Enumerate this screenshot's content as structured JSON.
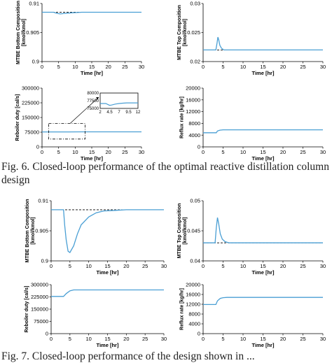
{
  "caption6": "Fig. 6. Closed-loop performance of the optimal reactive distillation column design",
  "caption7": "Fig. 7. Closed-loop performance of the design shown in ...",
  "colors": {
    "series": "#4a9fd4",
    "setpoint": "#000000"
  },
  "chart_data": [
    {
      "type": "line",
      "xlabel": "Time [hr]",
      "ylabel": "MTBE Bottom Composition [kmol/kmol]",
      "xlim": [
        0,
        30
      ],
      "ylim": [
        0.9,
        0.91
      ],
      "xticks": [
        "0",
        "5",
        "10",
        "15",
        "20",
        "25",
        "30"
      ],
      "yticks": [
        "0.9",
        "0.905",
        "0.91"
      ],
      "series": [
        {
          "x": [
            0,
            3.5,
            4.5,
            5.5,
            7,
            9,
            12,
            30
          ],
          "y": [
            0.9085,
            0.9085,
            0.9083,
            0.9082,
            0.9083,
            0.9084,
            0.9085,
            0.9085
          ]
        }
      ],
      "setpoint": 0.9085
    },
    {
      "type": "line",
      "xlabel": "Time [hr]",
      "ylabel": "MTBE Top Composition [kmol/kmol]",
      "xlim": [
        0,
        30
      ],
      "ylim": [
        0.02,
        0.03
      ],
      "xticks": [
        "0",
        "5",
        "10",
        "15",
        "20",
        "25",
        "30"
      ],
      "yticks": [
        "0.02",
        "0.025",
        "0.03"
      ],
      "series": [
        {
          "x": [
            0,
            3.2,
            3.5,
            3.7,
            3.9,
            4.2,
            4.6,
            5.2,
            6,
            30
          ],
          "y": [
            0.022,
            0.022,
            0.0232,
            0.0242,
            0.0238,
            0.0228,
            0.0223,
            0.022,
            0.022,
            0.022
          ]
        }
      ],
      "setpoint": 0.022
    },
    {
      "type": "line",
      "xlabel": "Time [hr]",
      "ylabel": "Reboiler duty [cal/s]",
      "xlim": [
        0,
        30
      ],
      "ylim": [
        0,
        300000
      ],
      "xticks": [
        "0",
        "5",
        "10",
        "15",
        "20",
        "25",
        "30"
      ],
      "yticks": [
        "0",
        "75000",
        "150000",
        "225000",
        "300000"
      ],
      "series": [
        {
          "x": [
            0,
            3.5,
            4.5,
            6,
            8,
            12,
            30
          ],
          "y": [
            76600,
            76600,
            76400,
            76300,
            76600,
            76800,
            76800
          ]
        }
      ],
      "inset": {
        "xlim": [
          2,
          12
        ],
        "ylim": [
          75000,
          80000
        ],
        "xticks": [
          "2",
          "4.5",
          "7",
          "9.5",
          "12"
        ],
        "yticks": [
          "75000",
          "77500",
          "80000"
        ],
        "x": [
          2,
          3.5,
          4,
          4.5,
          5,
          6,
          7,
          8,
          9,
          10,
          12
        ],
        "y": [
          76600,
          76600,
          76300,
          76000,
          76100,
          76400,
          76600,
          76700,
          76800,
          76800,
          76800
        ]
      }
    },
    {
      "type": "line",
      "xlabel": "Time [hr]",
      "ylabel": "Reflux rate [kg/hr]",
      "xlim": [
        0,
        30
      ],
      "ylim": [
        0,
        20000
      ],
      "xticks": [
        "0",
        "5",
        "10",
        "15",
        "20",
        "25",
        "30"
      ],
      "yticks": [
        "0",
        "4000",
        "8000",
        "12000",
        "16000",
        "20000"
      ],
      "series": [
        {
          "x": [
            0,
            3.3,
            3.6,
            4.2,
            5,
            30
          ],
          "y": [
            4800,
            4800,
            5400,
            5700,
            5800,
            5800
          ]
        }
      ]
    },
    {
      "type": "line",
      "xlabel": "Time [hr]",
      "ylabel": "MTBE Bottom Composition [kmol/kmol]",
      "xlim": [
        0,
        30
      ],
      "ylim": [
        0.9,
        0.91
      ],
      "xticks": [
        "0",
        "5",
        "10",
        "15",
        "20",
        "25",
        "30"
      ],
      "yticks": [
        "0.9",
        "0.905",
        "0.91"
      ],
      "series": [
        {
          "x": [
            0,
            3.3,
            3.6,
            4,
            4.5,
            5,
            6,
            7,
            8,
            10,
            12,
            14,
            17,
            20,
            25,
            30
          ],
          "y": [
            0.9085,
            0.9085,
            0.906,
            0.9035,
            0.9016,
            0.9014,
            0.9025,
            0.9045,
            0.906,
            0.9073,
            0.908,
            0.9083,
            0.9084,
            0.9085,
            0.9085,
            0.9085
          ]
        }
      ],
      "setpoint": 0.9085
    },
    {
      "type": "line",
      "xlabel": "Time [hr]",
      "ylabel": "MTBE Top Composition [kmol/kmol]",
      "xlim": [
        0,
        30
      ],
      "ylim": [
        0.04,
        0.05
      ],
      "xticks": [
        "0",
        "5",
        "10",
        "15",
        "20",
        "25",
        "30"
      ],
      "yticks": [
        "0.04",
        "0.045",
        "0.05"
      ],
      "series": [
        {
          "x": [
            0,
            3,
            3.3,
            3.6,
            3.9,
            4.3,
            4.8,
            5.5,
            6.5,
            30
          ],
          "y": [
            0.043,
            0.043,
            0.0455,
            0.0472,
            0.0462,
            0.0445,
            0.0436,
            0.0432,
            0.043,
            0.043
          ]
        }
      ],
      "setpoint": 0.043
    },
    {
      "type": "line",
      "xlabel": "Time [hr]",
      "ylabel": "Reboiler duty [cal/s]",
      "xlim": [
        0,
        30
      ],
      "ylim": [
        0,
        300000
      ],
      "xticks": [
        "0",
        "5",
        "10",
        "15",
        "20",
        "25",
        "30"
      ],
      "yticks": [
        "0",
        "75000",
        "150000",
        "225000",
        "300000"
      ],
      "series": [
        {
          "x": [
            0,
            3.3,
            4,
            5,
            6,
            8,
            30
          ],
          "y": [
            228000,
            228000,
            245000,
            262000,
            268000,
            268000,
            268000
          ]
        }
      ]
    },
    {
      "type": "line",
      "xlabel": "Time [hr]",
      "ylabel": "Reflux rate [kg/hr]",
      "xlim": [
        0,
        30
      ],
      "ylim": [
        0,
        20000
      ],
      "xticks": [
        "0",
        "5",
        "10",
        "15",
        "20",
        "25",
        "30"
      ],
      "yticks": [
        "0",
        "4000",
        "8000",
        "12000",
        "16000",
        "20000"
      ],
      "series": [
        {
          "x": [
            0,
            3.2,
            3.6,
            4.3,
            5,
            6,
            30
          ],
          "y": [
            11900,
            11900,
            13400,
            14400,
            14700,
            14800,
            14800
          ]
        }
      ]
    }
  ]
}
